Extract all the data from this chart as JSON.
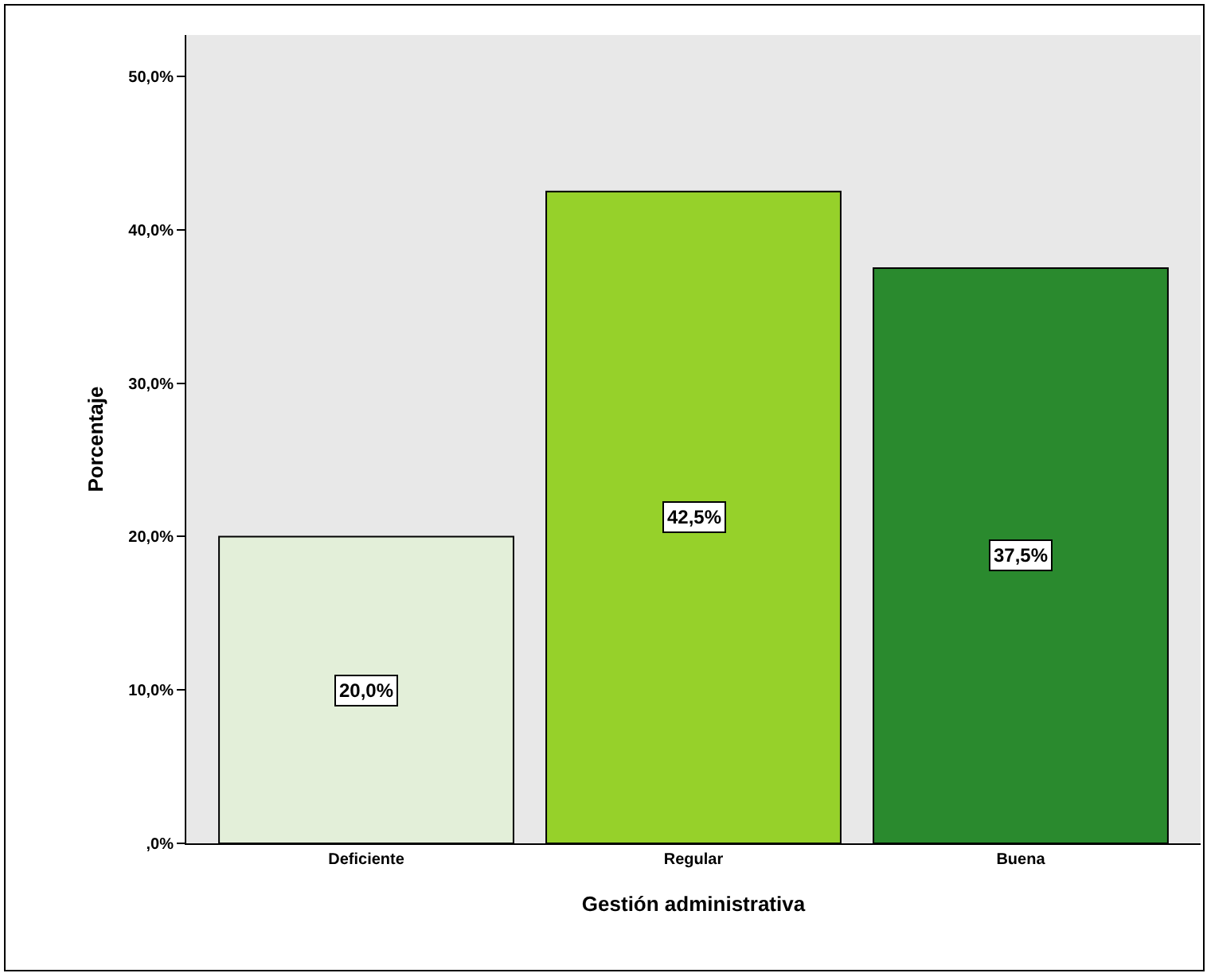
{
  "chart_data": {
    "type": "bar",
    "xlabel": "Gestión administrativa",
    "ylabel": "Porcentaje",
    "categories": [
      "Deficiente",
      "Regular",
      "Buena"
    ],
    "values": [
      20.0,
      42.5,
      37.5
    ],
    "colors": [
      "#e3efd9",
      "#96d12a",
      "#2a8a2e"
    ],
    "value_labels": [
      "20,0%",
      "42,5%",
      "37,5%"
    ],
    "ylim": [
      0,
      52.7
    ],
    "yticks": [
      {
        "value": 0,
        "label": ",0%"
      },
      {
        "value": 10,
        "label": "10,0%"
      },
      {
        "value": 20,
        "label": "20,0%"
      },
      {
        "value": 30,
        "label": "30,0%"
      },
      {
        "value": 40,
        "label": "40,0%"
      },
      {
        "value": 50,
        "label": "50,0%"
      }
    ],
    "grid": false
  }
}
